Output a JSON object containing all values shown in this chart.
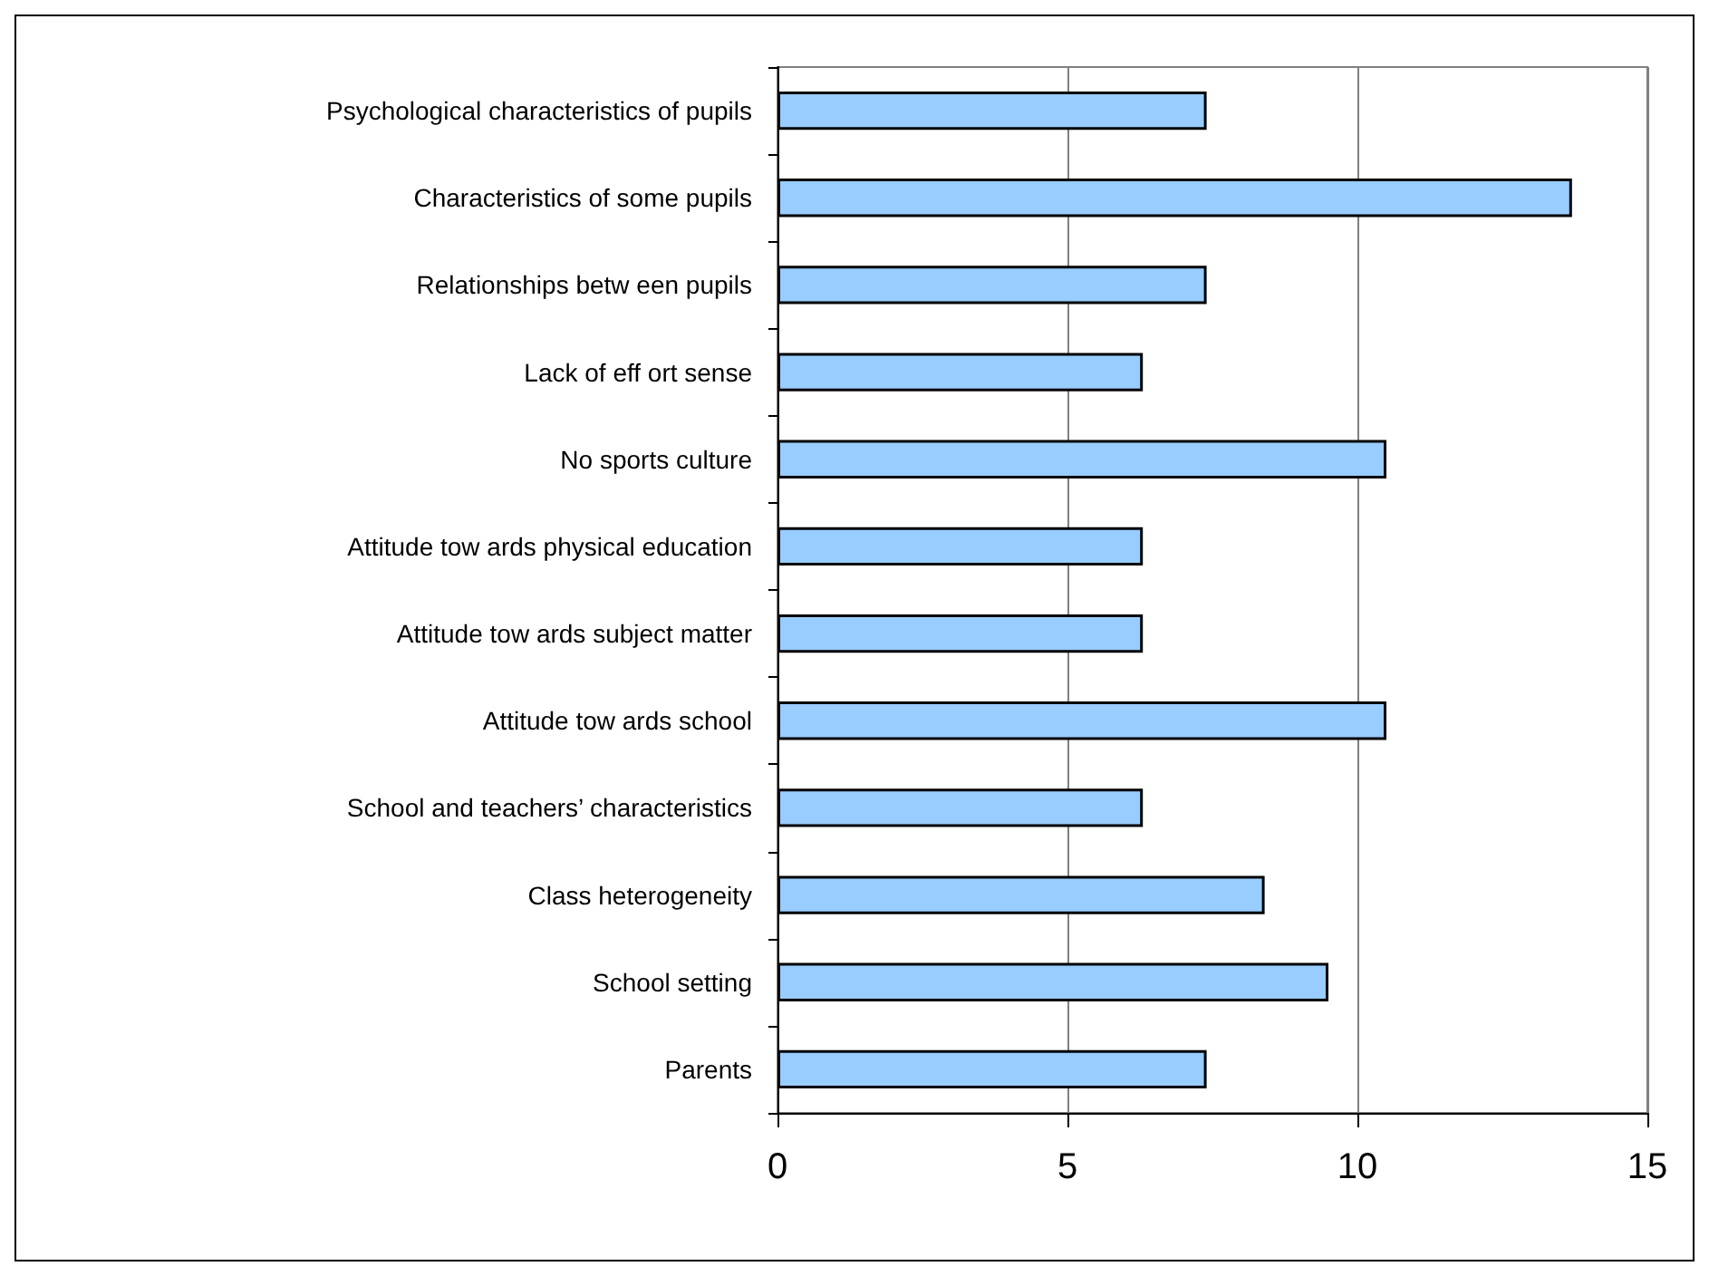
{
  "chart_data": {
    "type": "bar",
    "orientation": "horizontal",
    "categories": [
      "Psychological characteristics of pupils",
      "Characteristics of some pupils",
      "Relationships betw een pupils",
      "Lack of eff ort sense",
      "No sports culture",
      "Attitude tow ards physical education",
      "Attitude tow ards subject matter",
      "Attitude tow ards school",
      "School and teachers’ characteristics",
      "Class heterogeneity",
      "School setting",
      "Parents"
    ],
    "values": [
      7.4,
      13.7,
      7.4,
      6.3,
      10.5,
      6.3,
      6.3,
      10.5,
      6.3,
      8.4,
      9.5,
      7.4
    ],
    "color": "#99ccff",
    "xlim": [
      0,
      15
    ],
    "xticks": [
      0,
      5,
      10,
      15
    ],
    "grid": "x"
  }
}
